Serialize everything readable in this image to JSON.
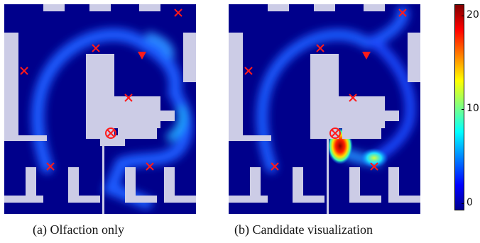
{
  "figure": {
    "panels": [
      {
        "id": "a",
        "caption": "(a) Olfaction only"
      },
      {
        "id": "b",
        "caption": "(b) Candidate visualization"
      }
    ],
    "colorbar": {
      "ticks": [
        "20",
        "10",
        "0"
      ],
      "values": [
        20,
        10,
        0
      ],
      "colormap": "jet"
    }
  },
  "colors": {
    "background": "#00008b",
    "walls": "#cccce6",
    "marker_red": "#ff1a1a"
  },
  "markers": {
    "candidate": "x-cross-marker",
    "target": "red-triangle-marker",
    "source": "circled-x-marker"
  }
}
